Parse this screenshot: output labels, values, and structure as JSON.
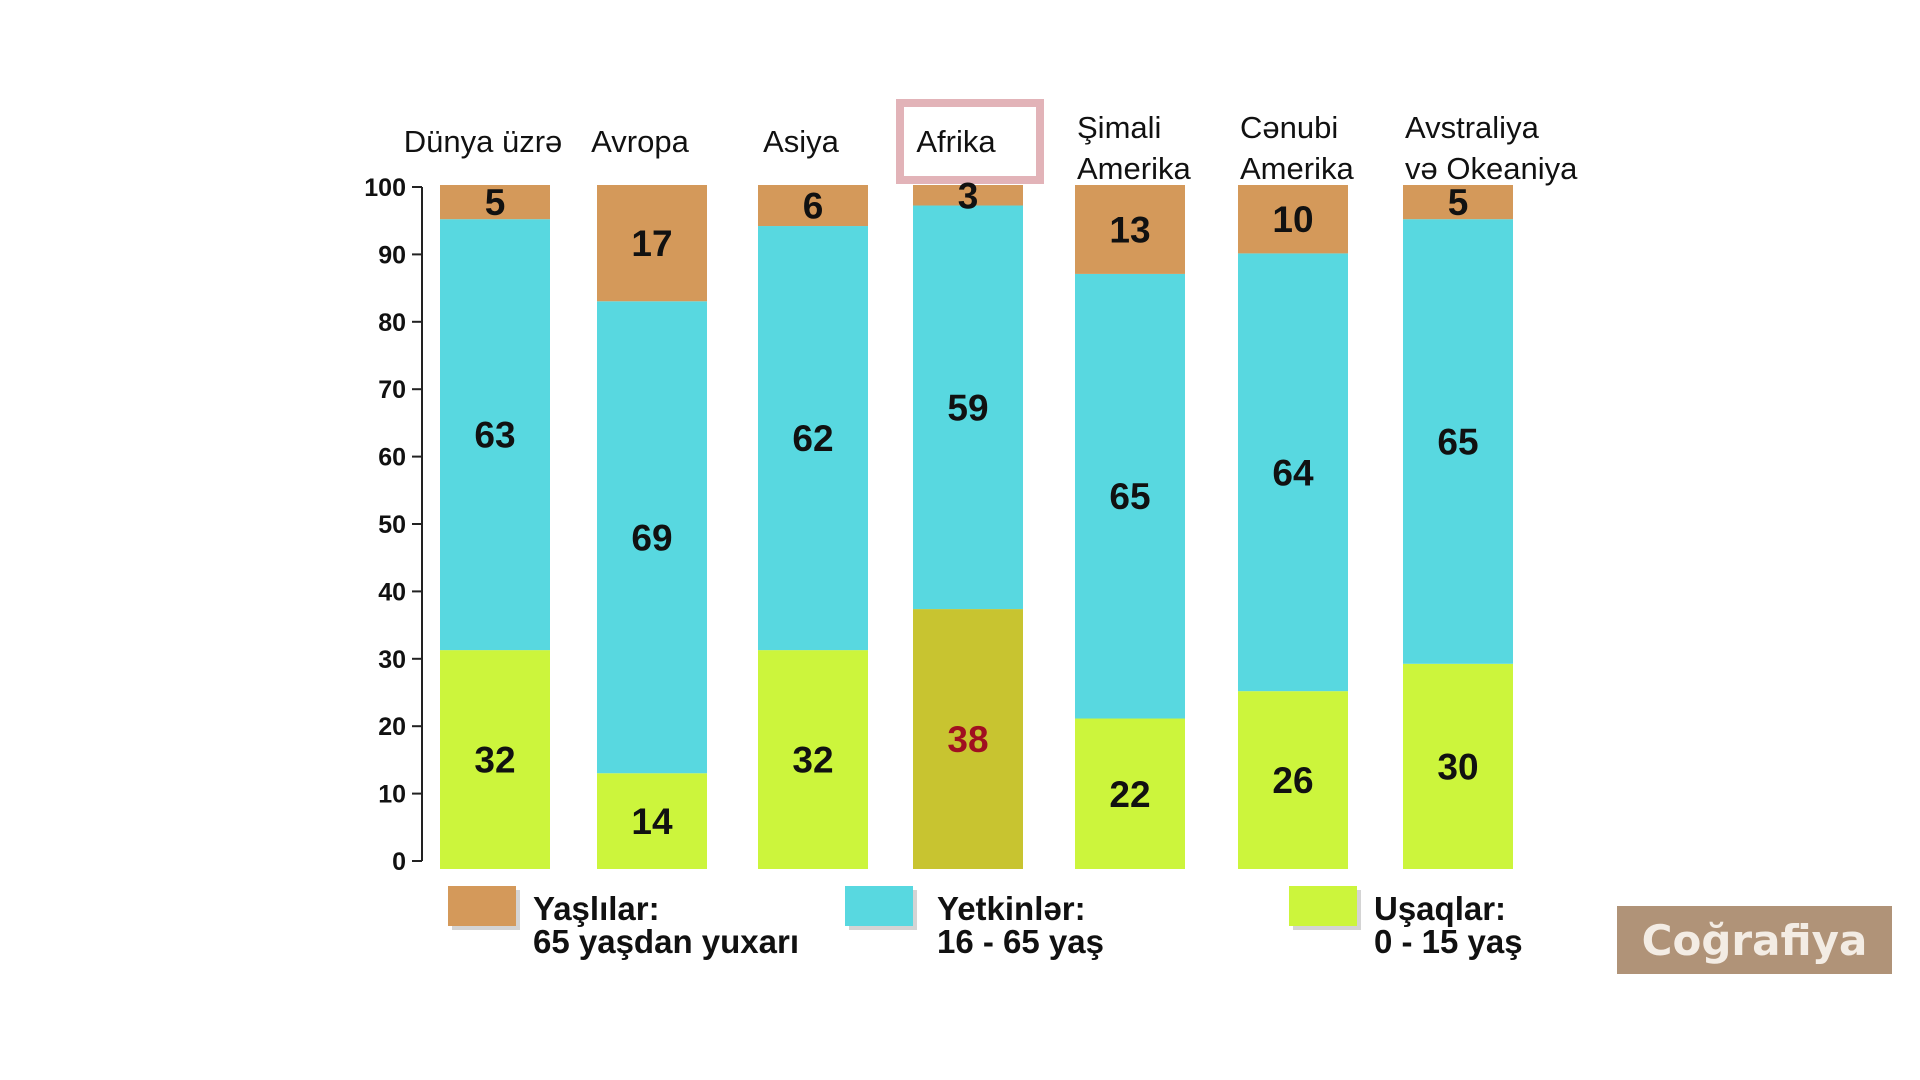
{
  "chart_data": {
    "type": "bar",
    "stacked": true,
    "categories": [
      "Dünya üzrə",
      "Avropa",
      "Asiya",
      "Afrika",
      "Şimali Amerika",
      "Cənubi Amerika",
      "Avstraliya və Okeaniya"
    ],
    "category_lines": [
      [
        "Dünya üzrə"
      ],
      [
        "Avropa"
      ],
      [
        "Asiya"
      ],
      [
        "Afrika"
      ],
      [
        "Şimali",
        "Amerika"
      ],
      [
        "Cənubi",
        "Amerika"
      ],
      [
        "Avstraliya",
        "və Okeaniya"
      ]
    ],
    "highlighted_category": "Afrika",
    "series": [
      {
        "name": "Uşaqlar: 0 - 15 yaş",
        "legend_lines": [
          "Uşaqlar:",
          "0 - 15 yaş"
        ],
        "color": "#ccf53c",
        "values": [
          32,
          14,
          32,
          38,
          22,
          26,
          30
        ]
      },
      {
        "name": "Yetkinlər: 16 - 65 yaş",
        "legend_lines": [
          "Yetkinlər:",
          "16 - 65 yaş"
        ],
        "color": "#58d8e0",
        "values": [
          63,
          69,
          62,
          59,
          65,
          64,
          65
        ]
      },
      {
        "name": "Yaşlılar: 65 yaşdan yuxarı",
        "legend_lines": [
          "Yaşlılar:",
          "65 yaşdan yuxarı"
        ],
        "color": "#d4995a",
        "values": [
          5,
          17,
          6,
          3,
          13,
          10,
          5
        ]
      }
    ],
    "legend_order": [
      2,
      1,
      0
    ],
    "highlight_colors": {
      "bar": "#c8c430",
      "text": "#a01020",
      "frame": "#e2b3b8"
    },
    "ylim": [
      0,
      100
    ],
    "yticks": [
      0,
      10,
      20,
      30,
      40,
      50,
      60,
      70,
      80,
      90,
      100
    ],
    "grid": false,
    "legend_placement": "bottom"
  },
  "brand": "Coğrafiya"
}
